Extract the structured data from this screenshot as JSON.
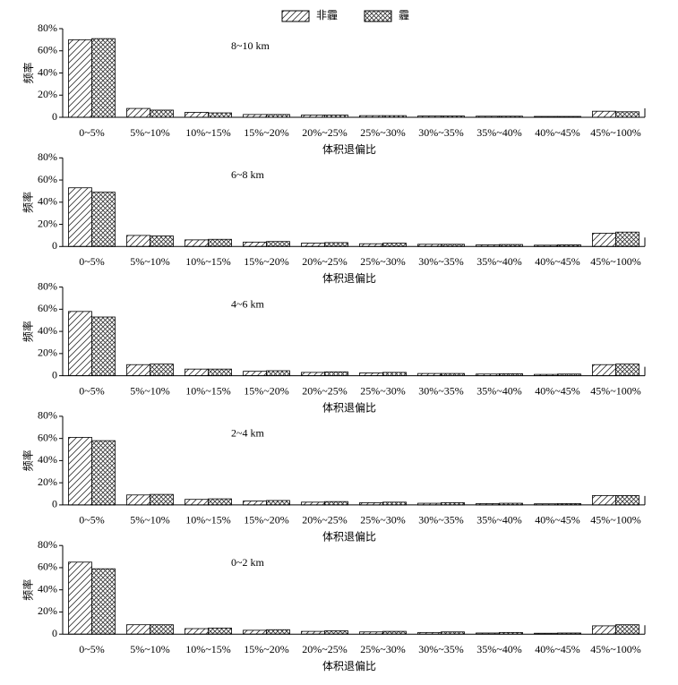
{
  "chart_data": [
    {
      "type": "bar",
      "annotation": "8~10 km",
      "ylabel": "频率",
      "xlabel": "体积退偏比",
      "categories": [
        "0~5%",
        "5%~10%",
        "10%~15%",
        "15%~20%",
        "20%~25%",
        "25%~30%",
        "30%~35%",
        "35%~40%",
        "40%~45%",
        "45%~100%"
      ],
      "series": [
        {
          "name": "非霾",
          "pattern": "hatch",
          "values": [
            70,
            8,
            4.5,
            2.5,
            2,
            1.5,
            1.2,
            1,
            0.8,
            5.5
          ]
        },
        {
          "name": "霾",
          "pattern": "crosshatch",
          "values": [
            71,
            6.5,
            4,
            2.5,
            2,
            1.5,
            1.2,
            1,
            0.8,
            5
          ]
        }
      ],
      "ylim": [
        0,
        80
      ],
      "yticks": [
        0,
        {
          "value": 20,
          "label": "20%"
        },
        {
          "value": 40,
          "label": "40%"
        },
        {
          "value": 60,
          "label": "60%"
        },
        {
          "value": 80,
          "label": "80%"
        }
      ]
    },
    {
      "type": "bar",
      "annotation": "6~8 km",
      "ylabel": "频率",
      "xlabel": "体积退偏比",
      "categories": [
        "0~5%",
        "5%~10%",
        "10%~15%",
        "15%~20%",
        "20%~25%",
        "25%~30%",
        "30%~35%",
        "35%~40%",
        "40%~45%",
        "45%~100%"
      ],
      "series": [
        {
          "pattern": "hatch",
          "values": [
            53,
            10,
            6,
            4,
            3,
            2.5,
            2,
            1.5,
            1.2,
            12
          ]
        },
        {
          "pattern": "crosshatch",
          "values": [
            49,
            9.5,
            6.5,
            4.5,
            3.5,
            3,
            2,
            1.8,
            1.5,
            13
          ]
        }
      ],
      "ylim": [
        0,
        80
      ],
      "yticks": [
        0,
        {
          "value": 20,
          "label": "20%"
        },
        {
          "value": 40,
          "label": "40%"
        },
        {
          "value": 60,
          "label": "60%"
        },
        {
          "value": 80,
          "label": "80%"
        }
      ]
    },
    {
      "type": "bar",
      "annotation": "4~6 km",
      "ylabel": "频率",
      "xlabel": "体积退偏比",
      "categories": [
        "0~5%",
        "5%~10%",
        "10%~15%",
        "15%~20%",
        "20%~25%",
        "25%~30%",
        "30%~35%",
        "35%~40%",
        "40%~45%",
        "45%~100%"
      ],
      "series": [
        {
          "pattern": "hatch",
          "values": [
            58,
            10,
            6,
            4,
            3,
            2.5,
            2,
            1.5,
            1.2,
            10
          ]
        },
        {
          "pattern": "crosshatch",
          "values": [
            53,
            10.5,
            6,
            4.5,
            3.5,
            3,
            2,
            1.8,
            1.5,
            10.5
          ]
        }
      ],
      "ylim": [
        0,
        80
      ],
      "yticks": [
        0,
        {
          "value": 20,
          "label": "20%"
        },
        {
          "value": 40,
          "label": "40%"
        },
        {
          "value": 60,
          "label": "60%"
        },
        {
          "value": 80,
          "label": "80%"
        }
      ]
    },
    {
      "type": "bar",
      "annotation": "2~4 km",
      "ylabel": "频率",
      "xlabel": "体积退偏比",
      "categories": [
        "0~5%",
        "5%~10%",
        "10%~15%",
        "15%~20%",
        "20%~25%",
        "25%~30%",
        "30%~35%",
        "35%~40%",
        "40%~45%",
        "45%~100%"
      ],
      "series": [
        {
          "pattern": "hatch",
          "values": [
            61,
            9,
            5,
            3.5,
            2.5,
            2,
            1.5,
            1.2,
            1,
            8.5
          ]
        },
        {
          "pattern": "crosshatch",
          "values": [
            58,
            9.5,
            5.5,
            4,
            3,
            2.5,
            2,
            1.5,
            1.2,
            8.5
          ]
        }
      ],
      "ylim": [
        0,
        80
      ],
      "yticks": [
        0,
        {
          "value": 20,
          "label": "20%"
        },
        {
          "value": 40,
          "label": "40%"
        },
        {
          "value": 60,
          "label": "60%"
        },
        {
          "value": 80,
          "label": "80%"
        }
      ]
    },
    {
      "type": "bar",
      "annotation": "0~2 km",
      "ylabel": "频率",
      "xlabel": "体积退偏比",
      "categories": [
        "0~5%",
        "5%~10%",
        "10%~15%",
        "15%~20%",
        "20%~25%",
        "25%~30%",
        "30%~35%",
        "35%~40%",
        "40%~45%",
        "45%~100%"
      ],
      "series": [
        {
          "pattern": "hatch",
          "values": [
            65,
            8.5,
            5,
            3.5,
            2.5,
            2,
            1.5,
            1,
            0.8,
            7.5
          ]
        },
        {
          "pattern": "crosshatch",
          "values": [
            59,
            8.5,
            5.5,
            4,
            3,
            2.5,
            2,
            1.5,
            1,
            8.5
          ]
        }
      ],
      "ylim": [
        0,
        80
      ],
      "yticks": [
        0,
        {
          "value": 20,
          "label": "20%"
        },
        {
          "value": 40,
          "label": "40%"
        },
        {
          "value": 60,
          "label": "60%"
        },
        {
          "value": 80,
          "label": "80%"
        }
      ]
    }
  ]
}
